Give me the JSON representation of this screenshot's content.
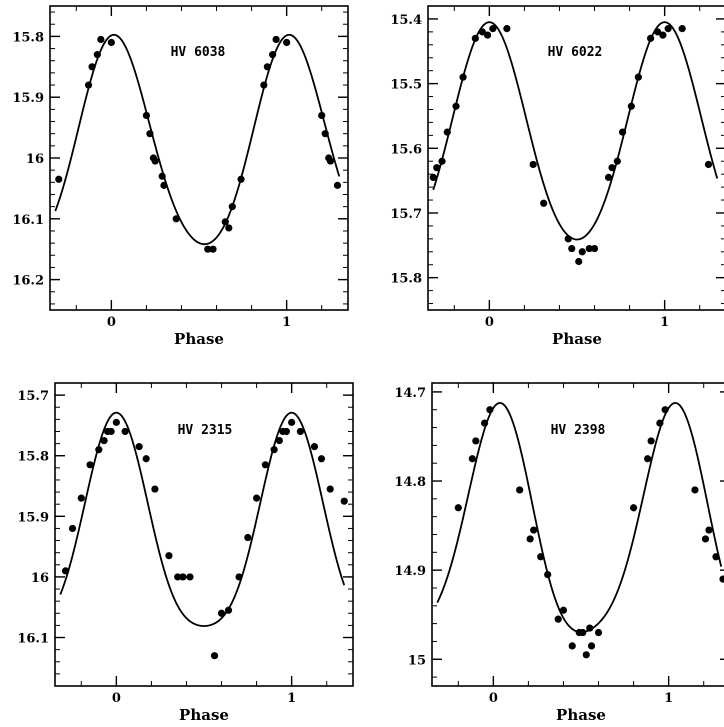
{
  "figure": {
    "panels_order": [
      "HV 6038",
      "HV 6022",
      "HV 2315",
      "HV 2398"
    ]
  },
  "chart_data": [
    {
      "type": "scatter",
      "title": "HV 6038",
      "xlabel": "Phase",
      "ylabel": "",
      "xlim": [
        -0.35,
        1.35
      ],
      "ylim": [
        16.25,
        15.75
      ],
      "y_inverted": true,
      "x_tick_labels": [
        "0",
        "1"
      ],
      "x_ticks": [
        0,
        1
      ],
      "y_tick_labels": [
        "15.8",
        "15.9",
        "16",
        "16.1",
        "16.2"
      ],
      "y_ticks": [
        15.8,
        15.9,
        16.0,
        16.1,
        16.2
      ],
      "fit_curve": {
        "mean": 15.985,
        "amp1": 0.172,
        "phi1": 0.02,
        "amp2": 0.016,
        "phi2": 0.0
      },
      "series": [
        {
          "x": [
            -0.3,
            -0.13,
            -0.11,
            -0.08,
            -0.06,
            0.0,
            0.2,
            0.22,
            0.24,
            0.25,
            0.29,
            0.3,
            0.37,
            0.55,
            0.58,
            0.65,
            0.67,
            0.69,
            0.74,
            0.87,
            0.89,
            0.92,
            0.94,
            1.0,
            1.2,
            1.22,
            1.24,
            1.25,
            1.29
          ],
          "y": [
            16.035,
            15.88,
            15.85,
            15.83,
            15.805,
            15.81,
            15.93,
            15.96,
            16.0,
            16.005,
            16.03,
            16.045,
            16.1,
            16.15,
            16.15,
            16.105,
            16.115,
            16.08,
            16.035,
            15.88,
            15.85,
            15.83,
            15.805,
            15.81,
            15.93,
            15.96,
            16.0,
            16.005,
            16.045
          ]
        }
      ]
    },
    {
      "type": "scatter",
      "title": "HV 6022",
      "xlabel": "Phase",
      "ylabel": "",
      "xlim": [
        -0.35,
        1.35
      ],
      "ylim": [
        15.85,
        15.38
      ],
      "y_inverted": true,
      "x_tick_labels": [
        "0",
        "1"
      ],
      "x_ticks": [
        0,
        1
      ],
      "y_tick_labels": [
        "15.4",
        "15.5",
        "15.6",
        "15.7",
        "15.8"
      ],
      "y_ticks": [
        15.4,
        15.5,
        15.6,
        15.7,
        15.8
      ],
      "fit_curve": {
        "mean": 15.585,
        "amp1": 0.168,
        "phi1": 0.0,
        "amp2": 0.012,
        "phi2": 0.0
      },
      "series": [
        {
          "x": [
            -0.32,
            -0.3,
            -0.27,
            -0.24,
            -0.19,
            -0.15,
            -0.08,
            -0.04,
            -0.01,
            0.02,
            0.1,
            0.25,
            0.31,
            0.45,
            0.47,
            0.51,
            0.53,
            0.57,
            0.6,
            0.68,
            0.7,
            0.73,
            0.76,
            0.81,
            0.85,
            0.92,
            0.96,
            0.99,
            1.02,
            1.1,
            1.25
          ],
          "y": [
            15.645,
            15.63,
            15.62,
            15.575,
            15.535,
            15.49,
            15.43,
            15.42,
            15.425,
            15.415,
            15.415,
            15.625,
            15.685,
            15.74,
            15.755,
            15.775,
            15.76,
            15.755,
            15.755,
            15.645,
            15.63,
            15.62,
            15.575,
            15.535,
            15.49,
            15.43,
            15.42,
            15.425,
            15.415,
            15.415,
            15.625
          ]
        }
      ]
    },
    {
      "type": "scatter",
      "title": "HV 2315",
      "xlabel": "Phase",
      "ylabel": "",
      "xlim": [
        -0.35,
        1.35
      ],
      "ylim": [
        16.18,
        15.68
      ],
      "y_inverted": true,
      "x_tick_labels": [
        "0",
        "1"
      ],
      "x_ticks": [
        0,
        1
      ],
      "y_tick_labels": [
        "15.7",
        "15.8",
        "15.9",
        "16",
        "16.1"
      ],
      "y_ticks": [
        15.7,
        15.8,
        15.9,
        16.0,
        16.1
      ],
      "fit_curve": {
        "mean": 15.935,
        "amp1": 0.176,
        "phi1": 0.0,
        "amp2": 0.03,
        "phi2": 0.0
      },
      "series": [
        {
          "x": [
            -0.29,
            -0.25,
            -0.2,
            -0.15,
            -0.1,
            -0.07,
            -0.05,
            -0.03,
            0.0,
            0.05,
            0.13,
            0.17,
            0.22,
            0.3,
            0.35,
            0.38,
            0.42,
            0.56,
            0.6,
            0.64,
            0.7,
            0.75,
            0.8,
            0.85,
            0.9,
            0.93,
            0.95,
            0.97,
            1.0,
            1.05,
            1.13,
            1.17,
            1.22,
            1.3
          ],
          "y": [
            15.99,
            15.92,
            15.87,
            15.815,
            15.79,
            15.775,
            15.76,
            15.76,
            15.745,
            15.76,
            15.785,
            15.805,
            15.855,
            15.965,
            16.0,
            16.0,
            16.0,
            16.13,
            16.06,
            16.055,
            16.0,
            15.935,
            15.87,
            15.815,
            15.79,
            15.775,
            15.76,
            15.76,
            15.745,
            15.76,
            15.785,
            15.805,
            15.855,
            15.875
          ]
        }
      ]
    },
    {
      "type": "scatter",
      "title": "HV 2398",
      "xlabel": "Phase",
      "ylabel": "",
      "xlim": [
        -0.35,
        1.35
      ],
      "ylim": [
        15.03,
        14.69
      ],
      "y_inverted": true,
      "x_tick_labels": [
        "0",
        "1"
      ],
      "x_ticks": [
        0,
        1
      ],
      "y_tick_labels": [
        "14.7",
        "14.8",
        "14.9",
        "15"
      ],
      "y_ticks": [
        14.7,
        14.8,
        14.9,
        15.0
      ],
      "fit_curve": {
        "mean": 14.86,
        "amp1": 0.128,
        "phi1": 0.03,
        "amp2": 0.02,
        "phi2": 0.05
      },
      "series": [
        {
          "x": [
            -0.2,
            -0.12,
            -0.1,
            -0.05,
            -0.02,
            0.15,
            0.21,
            0.23,
            0.27,
            0.31,
            0.37,
            0.4,
            0.45,
            0.49,
            0.51,
            0.53,
            0.55,
            0.56,
            0.6,
            0.8,
            0.88,
            0.9,
            0.95,
            0.98,
            1.15,
            1.21,
            1.23,
            1.27,
            1.31
          ],
          "y": [
            14.83,
            14.775,
            14.755,
            14.735,
            14.72,
            14.81,
            14.865,
            14.855,
            14.885,
            14.905,
            14.955,
            14.945,
            14.985,
            14.97,
            14.97,
            14.995,
            14.965,
            14.985,
            14.97,
            14.83,
            14.775,
            14.755,
            14.735,
            14.72,
            14.81,
            14.865,
            14.855,
            14.885,
            14.91
          ]
        }
      ]
    }
  ]
}
